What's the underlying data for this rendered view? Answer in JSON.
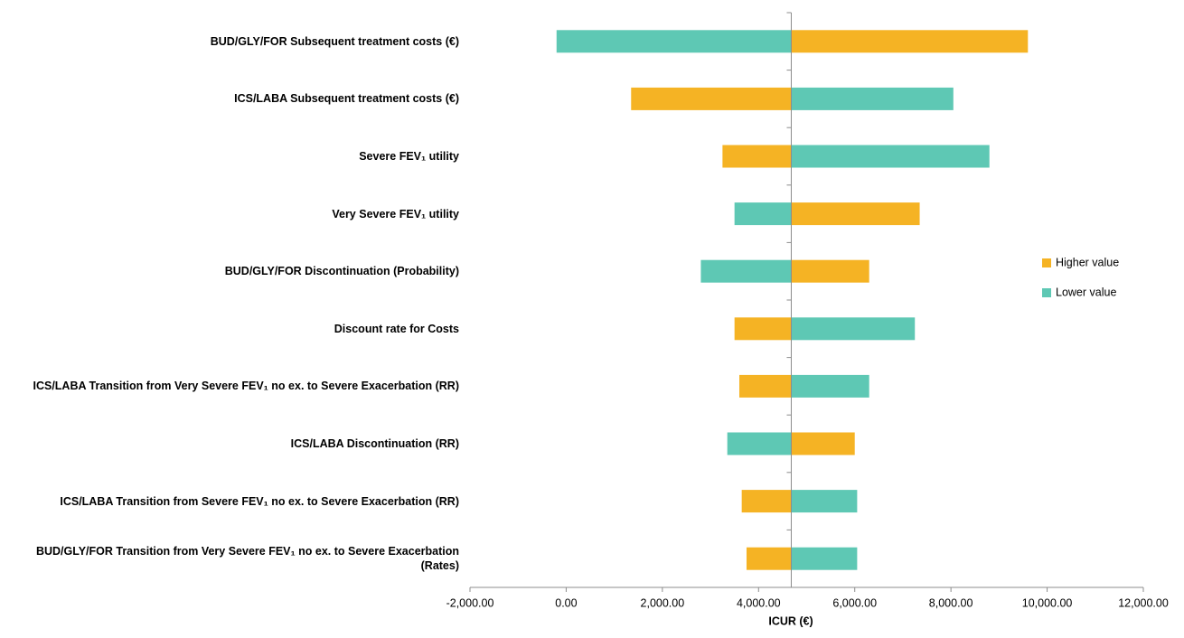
{
  "chart_data": {
    "type": "tornado",
    "x_label": "ICUR (€)",
    "categories": [
      "BUD/GLY/FOR Subsequent treatment costs (€)",
      "ICS/LABA Subsequent treatment costs (€)",
      "Severe FEV₁ utility",
      "Very Severe FEV₁ utility",
      "BUD/GLY/FOR Discontinuation (Probability)",
      "Discount rate for Costs",
      "ICS/LABA Transition from Very Severe FEV₁ no ex. to Severe Exacerbation (RR)",
      "ICS/LABA Discontinuation (RR)",
      "ICS/LABA Transition from Severe FEV₁ no ex. to Severe Exacerbation (RR)",
      "BUD/GLY/FOR Transition from Very Severe FEV₁ no ex. to Severe Exacerbation (Rates)"
    ],
    "series": [
      {
        "name": "Higher value",
        "color": "#f5b324",
        "values": [
          9600,
          1350,
          3250,
          7350,
          6300,
          3500,
          3600,
          6000,
          3650,
          3750
        ]
      },
      {
        "name": "Lower value",
        "color": "#5ec8b4",
        "values": [
          -200,
          8050,
          8800,
          3500,
          2800,
          7250,
          6300,
          3350,
          6050,
          6050
        ]
      }
    ],
    "x_cross": 4680,
    "xlim": [
      -2000,
      12000
    ],
    "xticks": [
      {
        "value": -2000,
        "label": "-2,000.00"
      },
      {
        "value": 0,
        "label": "0.00"
      },
      {
        "value": 2000,
        "label": "2,000.00"
      },
      {
        "value": 4000,
        "label": "4,000.00"
      },
      {
        "value": 6000,
        "label": "6,000.00"
      },
      {
        "value": 8000,
        "label": "8,000.00"
      },
      {
        "value": 10000,
        "label": "10,000.00"
      },
      {
        "value": 12000,
        "label": "12,000.00"
      }
    ],
    "legend": "right"
  }
}
